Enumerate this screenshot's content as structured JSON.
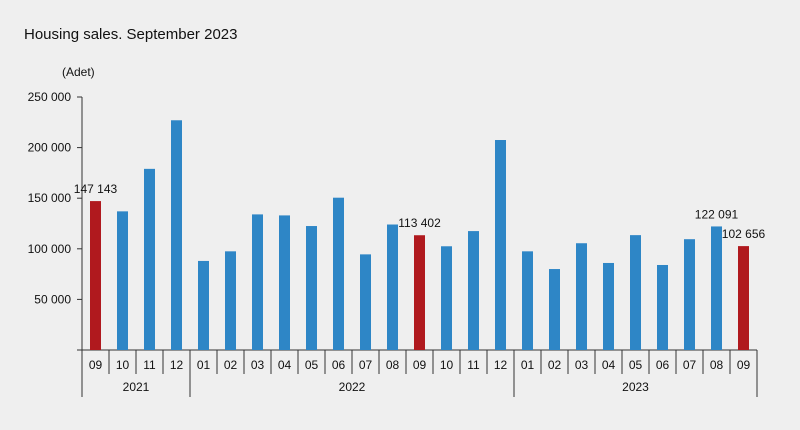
{
  "title": "Housing sales. September 2023",
  "unit": "(Adet)",
  "colors": {
    "normal": "#2e86c6",
    "highlight": "#b0191e",
    "axis": "#333333"
  },
  "chart_data": {
    "type": "bar",
    "categories": [
      "09",
      "10",
      "11",
      "12",
      "01",
      "02",
      "03",
      "04",
      "05",
      "06",
      "07",
      "08",
      "09",
      "10",
      "11",
      "12",
      "01",
      "02",
      "03",
      "04",
      "05",
      "06",
      "07",
      "08",
      "09"
    ],
    "values": [
      147143,
      137000,
      179000,
      227000,
      88000,
      97500,
      134000,
      133000,
      122500,
      150500,
      94500,
      124000,
      113402,
      102500,
      117500,
      207500,
      97500,
      80000,
      105500,
      86000,
      113500,
      84000,
      109500,
      122091,
      102656
    ],
    "highlight": [
      true,
      false,
      false,
      false,
      false,
      false,
      false,
      false,
      false,
      false,
      false,
      false,
      true,
      false,
      false,
      false,
      false,
      false,
      false,
      false,
      false,
      false,
      false,
      false,
      true
    ],
    "years": [
      {
        "label": "2021",
        "count": 4
      },
      {
        "label": "2022",
        "count": 12
      },
      {
        "label": "2023",
        "count": 9
      }
    ],
    "yticks": [
      0,
      50000,
      100000,
      150000,
      200000,
      250000
    ],
    "ytick_labels": [
      "",
      "50 000",
      "100 000",
      "150 000",
      "200 000",
      "250 000"
    ],
    "ylim": [
      0,
      250000
    ],
    "annotations": [
      {
        "index": 0,
        "text": "147 143"
      },
      {
        "index": 12,
        "text": "113 402"
      },
      {
        "index": 23,
        "text": "122 091"
      },
      {
        "index": 24,
        "text": "102 656"
      }
    ],
    "grid": false,
    "legend": "none"
  }
}
